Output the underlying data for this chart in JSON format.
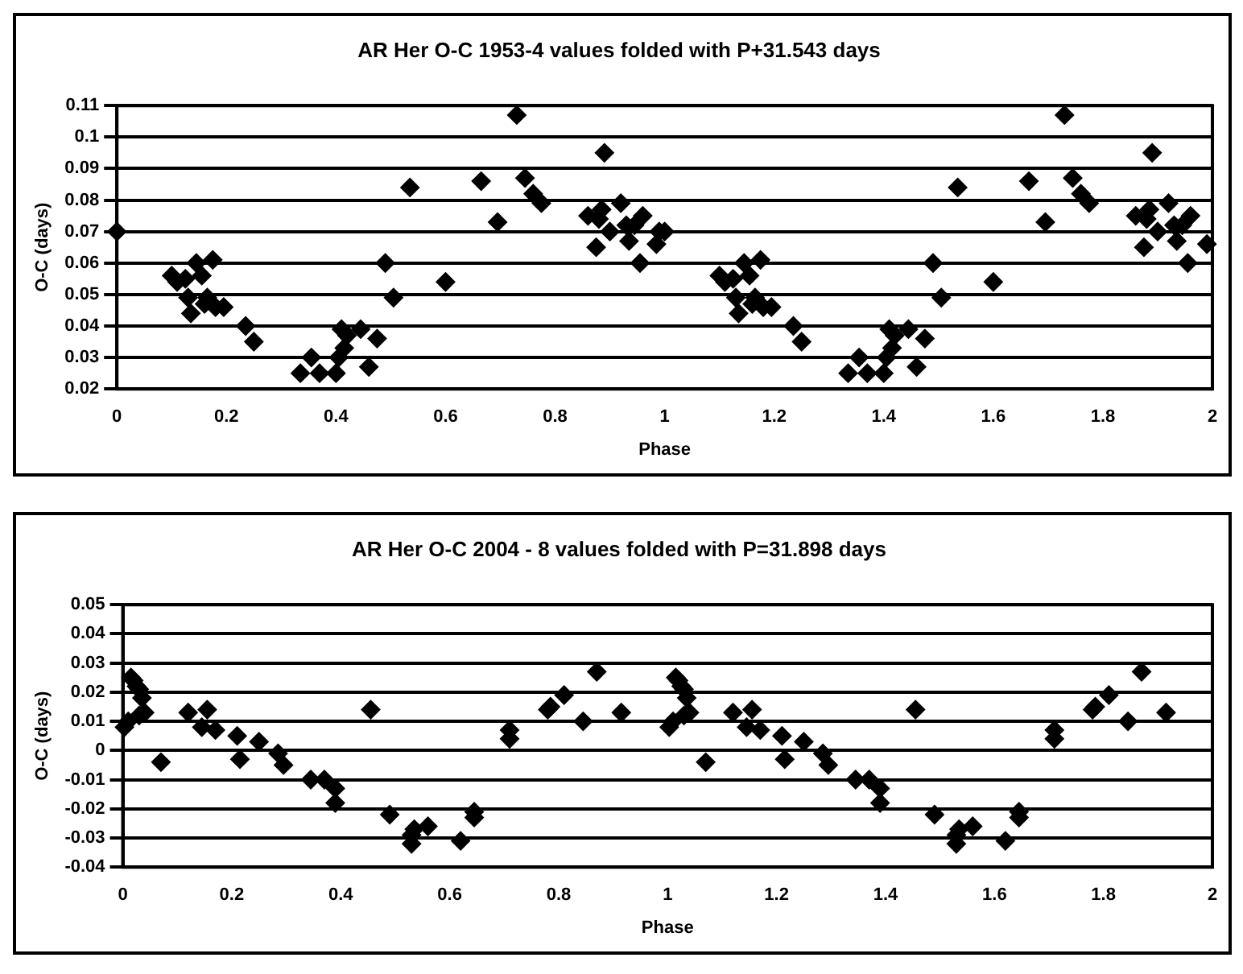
{
  "chart_data": [
    {
      "type": "scatter",
      "title": "AR Her O-C 1953-4 values folded with P+31.543 days",
      "xlabel": "Phase",
      "ylabel": "O-C (days)",
      "xlim": [
        0,
        2
      ],
      "xticks": [
        0,
        0.2,
        0.4,
        0.6,
        0.8,
        1,
        1.2,
        1.4,
        1.6,
        1.8,
        2
      ],
      "ylim": [
        0.02,
        0.11
      ],
      "yticks": [
        0.02,
        0.03,
        0.04,
        0.05,
        0.06,
        0.07,
        0.08,
        0.09,
        0.1,
        0.11
      ],
      "grid": "y",
      "legend": false,
      "marker": "diamond",
      "series": [
        {
          "color": "#000000",
          "x": [
            0,
            0.1,
            0.11,
            0.125,
            0.13,
            0.135,
            0.145,
            0.155,
            0.16,
            0.165,
            0.175,
            0.18,
            0.195,
            0.235,
            0.25,
            0.335,
            0.355,
            0.37,
            0.4,
            0.405,
            0.41,
            0.415,
            0.42,
            0.445,
            0.46,
            0.475,
            0.49,
            0.505,
            0.535,
            0.6,
            0.665,
            0.695,
            0.73,
            0.745,
            0.76,
            0.775,
            0.86,
            0.875,
            0.88,
            0.885,
            0.89,
            0.9,
            0.92,
            0.93,
            0.935,
            0.945,
            0.955,
            0.96,
            0.985,
            0.99,
            1,
            1.1,
            1.11,
            1.125,
            1.13,
            1.135,
            1.145,
            1.155,
            1.16,
            1.165,
            1.175,
            1.18,
            1.195,
            1.235,
            1.25,
            1.335,
            1.355,
            1.37,
            1.4,
            1.405,
            1.41,
            1.415,
            1.42,
            1.445,
            1.46,
            1.475,
            1.49,
            1.505,
            1.535,
            1.6,
            1.665,
            1.695,
            1.73,
            1.745,
            1.76,
            1.775,
            1.86,
            1.875,
            1.88,
            1.885,
            1.89,
            1.9,
            1.92,
            1.93,
            1.935,
            1.945,
            1.955,
            1.96,
            1.99
          ],
          "values": [
            0.07,
            0.056,
            0.054,
            0.055,
            0.049,
            0.044,
            0.06,
            0.056,
            0.047,
            0.049,
            0.061,
            0.046,
            0.046,
            0.04,
            0.035,
            0.025,
            0.03,
            0.025,
            0.025,
            0.03,
            0.039,
            0.033,
            0.037,
            0.039,
            0.027,
            0.036,
            0.06,
            0.049,
            0.084,
            0.054,
            0.086,
            0.073,
            0.107,
            0.087,
            0.082,
            0.079,
            0.075,
            0.065,
            0.074,
            0.077,
            0.095,
            0.07,
            0.079,
            0.072,
            0.067,
            0.072,
            0.06,
            0.075,
            0.066,
            0.07,
            0.07,
            0.056,
            0.054,
            0.055,
            0.049,
            0.044,
            0.06,
            0.056,
            0.047,
            0.049,
            0.061,
            0.046,
            0.046,
            0.04,
            0.035,
            0.025,
            0.03,
            0.025,
            0.025,
            0.03,
            0.039,
            0.033,
            0.037,
            0.039,
            0.027,
            0.036,
            0.06,
            0.049,
            0.084,
            0.054,
            0.086,
            0.073,
            0.107,
            0.087,
            0.082,
            0.079,
            0.075,
            0.065,
            0.074,
            0.077,
            0.095,
            0.07,
            0.079,
            0.072,
            0.067,
            0.072,
            0.06,
            0.075,
            0.066
          ]
        }
      ]
    },
    {
      "type": "scatter",
      "title": "AR Her O-C 2004 - 8 values folded with P=31.898 days",
      "xlabel": "Phase",
      "ylabel": "O-C (days)",
      "xlim": [
        0,
        2
      ],
      "xticks": [
        0,
        0.2,
        0.4,
        0.6,
        0.8,
        1,
        1.2,
        1.4,
        1.6,
        1.8,
        2
      ],
      "ylim": [
        -0.04,
        0.05
      ],
      "yticks": [
        -0.04,
        -0.03,
        -0.02,
        -0.01,
        0,
        0.01,
        0.02,
        0.03,
        0.04,
        0.05
      ],
      "grid": "y",
      "legend": false,
      "marker": "diamond",
      "series": [
        {
          "color": "#000000",
          "x": [
            0.003,
            0.01,
            0.015,
            0.02,
            0.025,
            0.03,
            0.035,
            0.03,
            0.04,
            0.07,
            0.12,
            0.145,
            0.155,
            0.17,
            0.21,
            0.215,
            0.25,
            0.285,
            0.295,
            0.345,
            0.37,
            0.39,
            0.39,
            0.455,
            0.49,
            0.53,
            0.53,
            0.535,
            0.56,
            0.62,
            0.645,
            0.645,
            0.71,
            0.71,
            0.78,
            0.785,
            0.81,
            0.845,
            0.87,
            0.915,
            1.003,
            1.01,
            1.015,
            1.02,
            1.025,
            1.03,
            1.035,
            1.03,
            1.04,
            1.07,
            1.12,
            1.145,
            1.155,
            1.17,
            1.21,
            1.215,
            1.25,
            1.285,
            1.295,
            1.345,
            1.37,
            1.39,
            1.39,
            1.455,
            1.49,
            1.53,
            1.53,
            1.535,
            1.56,
            1.62,
            1.645,
            1.645,
            1.71,
            1.71,
            1.78,
            1.785,
            1.81,
            1.845,
            1.87,
            1.915
          ],
          "values": [
            0.008,
            0.01,
            0.025,
            0.024,
            0.022,
            0.021,
            0.018,
            0.012,
            0.013,
            -0.004,
            0.013,
            0.008,
            0.014,
            0.007,
            0.005,
            -0.003,
            0.003,
            -0.001,
            -0.005,
            -0.01,
            -0.01,
            -0.013,
            -0.018,
            0.014,
            -0.022,
            -0.029,
            -0.032,
            -0.027,
            -0.026,
            -0.031,
            -0.021,
            -0.023,
            0.004,
            0.007,
            0.014,
            0.015,
            0.019,
            0.01,
            0.027,
            0.013,
            0.008,
            0.01,
            0.025,
            0.024,
            0.022,
            0.021,
            0.018,
            0.012,
            0.013,
            -0.004,
            0.013,
            0.008,
            0.014,
            0.007,
            0.005,
            -0.003,
            0.003,
            -0.001,
            -0.005,
            -0.01,
            -0.01,
            -0.013,
            -0.018,
            0.014,
            -0.022,
            -0.029,
            -0.032,
            -0.027,
            -0.026,
            -0.031,
            -0.021,
            -0.023,
            0.004,
            0.007,
            0.014,
            0.015,
            0.019,
            0.01,
            0.027,
            0.013
          ]
        }
      ]
    }
  ]
}
